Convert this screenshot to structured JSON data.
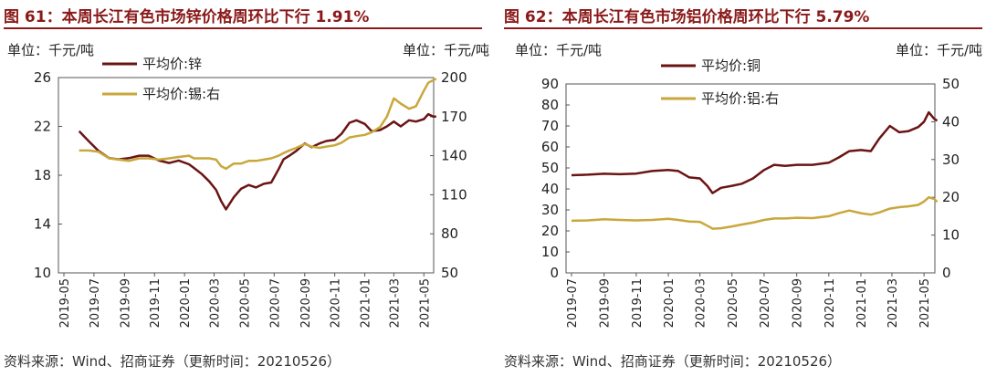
{
  "figure1": {
    "title": "图 61：本周长江有色市场锌价格周环比下行 1.91%",
    "source": "资料来源：Wind、招商证券（更新时间：20210526）"
  },
  "figure2": {
    "title": "图 62：本周长江有色市场铝价格周环比下行 5.79%",
    "source": "资料来源：Wind、招商证券（更新时间：20210526）"
  },
  "chart_data": [
    {
      "type": "line",
      "left_unit": "单位：千元/吨",
      "right_unit": "单位：千元/吨",
      "x_range": [
        "2019-05",
        "2021-05"
      ],
      "x_ticks": [
        "2019-05",
        "2019-07",
        "2019-09",
        "2019-11",
        "2020-01",
        "2020-03",
        "2020-05",
        "2020-07",
        "2020-09",
        "2020-11",
        "2021-01",
        "2021-03",
        "2021-05"
      ],
      "y_left": [
        10,
        26
      ],
      "y_left_ticks": [
        10,
        14,
        18,
        22,
        26
      ],
      "y_right": [
        50,
        200
      ],
      "y_right_ticks": [
        50,
        80,
        110,
        140,
        170,
        200
      ],
      "grid": false,
      "legend_position": "top-center",
      "series": [
        {
          "name": "平均价:锌",
          "axis": "left",
          "color": "#6b1414",
          "x": [
            "2019-06-01",
            "2019-06-20",
            "2019-07-10",
            "2019-08-01",
            "2019-08-20",
            "2019-09-10",
            "2019-10-01",
            "2019-10-20",
            "2019-11-10",
            "2019-12-01",
            "2019-12-20",
            "2020-01-10",
            "2020-01-20",
            "2020-02-05",
            "2020-02-20",
            "2020-03-05",
            "2020-03-15",
            "2020-03-25",
            "2020-04-10",
            "2020-04-25",
            "2020-05-10",
            "2020-05-25",
            "2020-06-10",
            "2020-06-25",
            "2020-07-10",
            "2020-07-20",
            "2020-08-01",
            "2020-08-15",
            "2020-09-01",
            "2020-09-15",
            "2020-10-01",
            "2020-10-15",
            "2020-11-01",
            "2020-11-15",
            "2020-12-01",
            "2020-12-15",
            "2021-01-01",
            "2021-01-15",
            "2021-02-01",
            "2021-02-15",
            "2021-03-01",
            "2021-03-15",
            "2021-04-01",
            "2021-04-15",
            "2021-05-01",
            "2021-05-10",
            "2021-05-20",
            "2021-05-26"
          ],
          "values": [
            21.6,
            20.8,
            20.0,
            19.4,
            19.3,
            19.4,
            19.6,
            19.6,
            19.2,
            19.0,
            19.2,
            18.9,
            18.6,
            18.1,
            17.5,
            16.8,
            15.9,
            15.2,
            16.2,
            16.9,
            17.2,
            17.0,
            17.3,
            17.4,
            18.5,
            19.3,
            19.6,
            20.0,
            20.6,
            20.3,
            20.6,
            20.8,
            20.9,
            21.4,
            22.3,
            22.5,
            22.2,
            21.6,
            21.7,
            22.0,
            22.4,
            22.0,
            22.5,
            22.4,
            22.6,
            23.0,
            22.8,
            22.8
          ]
        },
        {
          "name": "平均价:锡:右",
          "axis": "right",
          "color": "#c9a73c",
          "x": [
            "2019-06-01",
            "2019-06-20",
            "2019-07-10",
            "2019-08-01",
            "2019-08-20",
            "2019-09-10",
            "2019-10-01",
            "2019-10-20",
            "2019-11-10",
            "2019-12-01",
            "2019-12-20",
            "2020-01-10",
            "2020-01-20",
            "2020-02-05",
            "2020-02-20",
            "2020-03-05",
            "2020-03-15",
            "2020-03-25",
            "2020-04-10",
            "2020-04-25",
            "2020-05-10",
            "2020-05-25",
            "2020-06-10",
            "2020-06-25",
            "2020-07-10",
            "2020-07-20",
            "2020-08-01",
            "2020-08-15",
            "2020-09-01",
            "2020-09-15",
            "2020-10-01",
            "2020-10-15",
            "2020-11-01",
            "2020-11-15",
            "2020-12-01",
            "2020-12-15",
            "2021-01-01",
            "2021-01-15",
            "2021-02-01",
            "2021-02-15",
            "2021-03-01",
            "2021-03-15",
            "2021-04-01",
            "2021-04-15",
            "2021-05-01",
            "2021-05-10",
            "2021-05-20",
            "2021-05-26"
          ],
          "values": [
            144,
            144,
            143,
            138,
            137,
            136,
            138,
            138,
            137,
            138,
            139,
            140,
            138,
            138,
            138,
            137,
            132,
            130,
            134,
            134,
            136,
            136,
            137,
            138,
            140,
            142,
            144,
            146,
            149,
            147,
            146,
            147,
            148,
            150,
            154,
            155,
            156,
            158,
            162,
            170,
            184,
            180,
            176,
            178,
            190,
            196,
            198,
            199
          ]
        }
      ]
    },
    {
      "type": "line",
      "left_unit": "单位：千元/吨",
      "right_unit": "单位：千元/吨",
      "x_range": [
        "2019-07",
        "2021-05"
      ],
      "x_ticks": [
        "2019-07",
        "2019-09",
        "2019-11",
        "2020-01",
        "2020-03",
        "2020-05",
        "2020-07",
        "2020-09",
        "2020-11",
        "2021-01",
        "2021-03",
        "2021-05"
      ],
      "y_left": [
        0,
        90
      ],
      "y_left_ticks": [
        0,
        10,
        20,
        30,
        40,
        50,
        60,
        70,
        80,
        90
      ],
      "y_right": [
        0,
        50
      ],
      "y_right_ticks": [
        0,
        10,
        20,
        30,
        40,
        50
      ],
      "grid": false,
      "legend_position": "top-center",
      "series": [
        {
          "name": "平均价:铜",
          "axis": "left",
          "color": "#6b1414",
          "x": [
            "2019-07-01",
            "2019-08-01",
            "2019-09-01",
            "2019-10-01",
            "2019-11-01",
            "2019-12-01",
            "2020-01-01",
            "2020-01-20",
            "2020-02-10",
            "2020-03-01",
            "2020-03-15",
            "2020-03-25",
            "2020-04-10",
            "2020-05-01",
            "2020-05-20",
            "2020-06-10",
            "2020-07-01",
            "2020-07-20",
            "2020-08-10",
            "2020-09-01",
            "2020-10-01",
            "2020-11-01",
            "2020-11-20",
            "2020-12-10",
            "2021-01-01",
            "2021-01-20",
            "2021-02-05",
            "2021-02-25",
            "2021-03-15",
            "2021-04-01",
            "2021-04-20",
            "2021-05-01",
            "2021-05-10",
            "2021-05-20",
            "2021-05-26"
          ],
          "values": [
            46.5,
            46.8,
            47.2,
            47.0,
            47.3,
            48.5,
            49.0,
            48.5,
            45.5,
            45.0,
            41.5,
            38.0,
            40.5,
            41.5,
            42.5,
            45.0,
            49.0,
            51.5,
            51.0,
            51.5,
            51.5,
            52.5,
            55.0,
            58.0,
            58.5,
            58.0,
            64.0,
            70.0,
            67.0,
            67.5,
            69.5,
            72.0,
            76.5,
            73.5,
            72.5
          ]
        },
        {
          "name": "平均价:铝:右",
          "axis": "right",
          "color": "#c9a73c",
          "x": [
            "2019-07-01",
            "2019-08-01",
            "2019-09-01",
            "2019-10-01",
            "2019-11-01",
            "2019-12-01",
            "2020-01-01",
            "2020-01-20",
            "2020-02-10",
            "2020-03-01",
            "2020-03-15",
            "2020-03-25",
            "2020-04-10",
            "2020-05-01",
            "2020-05-20",
            "2020-06-10",
            "2020-07-01",
            "2020-07-20",
            "2020-08-10",
            "2020-09-01",
            "2020-10-01",
            "2020-11-01",
            "2020-11-20",
            "2020-12-10",
            "2021-01-01",
            "2021-01-20",
            "2021-02-05",
            "2021-02-25",
            "2021-03-15",
            "2021-04-01",
            "2021-04-20",
            "2021-05-01",
            "2021-05-10",
            "2021-05-20",
            "2021-05-26"
          ],
          "values": [
            13.8,
            13.9,
            14.2,
            14.0,
            13.9,
            14.0,
            14.3,
            14.0,
            13.6,
            13.5,
            12.5,
            11.7,
            11.8,
            12.3,
            12.8,
            13.3,
            14.0,
            14.4,
            14.4,
            14.6,
            14.5,
            15.0,
            15.8,
            16.5,
            15.8,
            15.4,
            16.0,
            17.0,
            17.4,
            17.6,
            18.0,
            18.9,
            20.0,
            19.6,
            18.8
          ]
        }
      ]
    }
  ]
}
